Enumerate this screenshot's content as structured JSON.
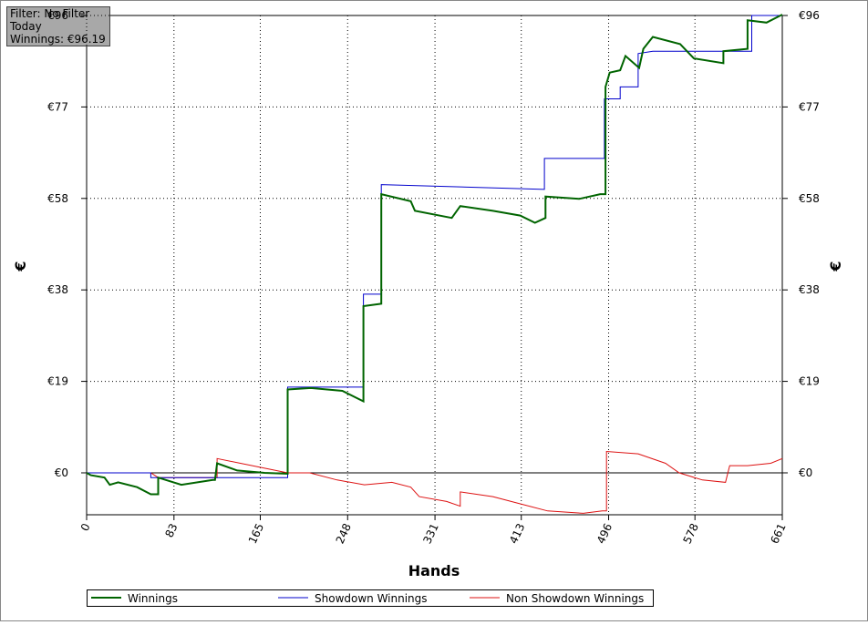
{
  "chart_data": {
    "type": "line",
    "info": [
      "Filter: No Filter",
      "Today",
      "Winnings: €96.19"
    ],
    "x_label": "Hands",
    "y_label": "€",
    "y2_label": "€",
    "xlim": [
      0,
      661
    ],
    "xticks": [
      0,
      83,
      165,
      248,
      331,
      413,
      496,
      578,
      661
    ],
    "ylim": [
      -8.8,
      96
    ],
    "yticks": [
      {
        "value": 0,
        "label": "€0"
      },
      {
        "value": 19.2,
        "label": "€19"
      },
      {
        "value": 38.4,
        "label": "€38"
      },
      {
        "value": 57.6,
        "label": "€58"
      },
      {
        "value": 76.8,
        "label": "€77"
      },
      {
        "value": 96,
        "label": "€96"
      }
    ],
    "grid": true,
    "series": [
      {
        "name": "Winnings",
        "color": "#006400",
        "x": [
          0,
          4,
          17,
          22,
          30,
          48,
          61,
          68,
          68,
          90,
          120,
          122,
          124,
          143,
          169,
          191,
          191,
          213,
          243,
          263,
          263,
          280,
          280,
          308,
          312,
          347,
          355,
          386,
          412,
          426,
          436,
          436,
          468,
          488,
          493,
          493,
          497,
          507,
          512,
          525,
          529,
          538,
          564,
          577,
          605,
          605,
          628,
          628,
          646,
          661
        ],
        "values": [
          0,
          -0.5,
          -1,
          -2.5,
          -2,
          -3,
          -4.5,
          -4.5,
          -1,
          -2.5,
          -1.5,
          -1.5,
          2,
          0.5,
          0,
          -0.2,
          17.5,
          17.8,
          17.2,
          15,
          35,
          35.5,
          58.5,
          57,
          55,
          53.5,
          56,
          55,
          54,
          52.5,
          53.5,
          58,
          57.5,
          58.5,
          58.5,
          81,
          84,
          84.5,
          87.5,
          85,
          89,
          91.5,
          90,
          87,
          86,
          88.5,
          89,
          95,
          94.5,
          96.19
        ]
      },
      {
        "name": "Showdown Winnings",
        "color": "#0000cc",
        "x": [
          0,
          61,
          61,
          126,
          191,
          191,
          263,
          263,
          280,
          280,
          435,
          435,
          492,
          492,
          507,
          507,
          524,
          524,
          538,
          632,
          632,
          661
        ],
        "values": [
          0,
          0,
          -1,
          -1,
          -1,
          18,
          18,
          37.5,
          37.5,
          60.5,
          59.5,
          66,
          66,
          78.5,
          78.5,
          81,
          81,
          88,
          88.5,
          88.5,
          96,
          96
        ]
      },
      {
        "name": "Non Showdown Winnings",
        "color": "#dd1111",
        "x": [
          0,
          61,
          68,
          124,
          124,
          191,
          212,
          238,
          264,
          290,
          308,
          316,
          342,
          355,
          355,
          386,
          412,
          438,
          472,
          490,
          494,
          494,
          524,
          550,
          563,
          585,
          607,
          611,
          628,
          650,
          661
        ],
        "values": [
          0,
          0,
          -1,
          -1,
          3,
          0,
          0,
          -1.5,
          -2.5,
          -2,
          -3,
          -5,
          -6,
          -7,
          -4,
          -5,
          -6.5,
          -8,
          -8.5,
          -8,
          -8,
          4.5,
          4,
          2,
          0,
          -1.5,
          -2,
          1.5,
          1.5,
          2,
          3
        ]
      }
    ]
  }
}
